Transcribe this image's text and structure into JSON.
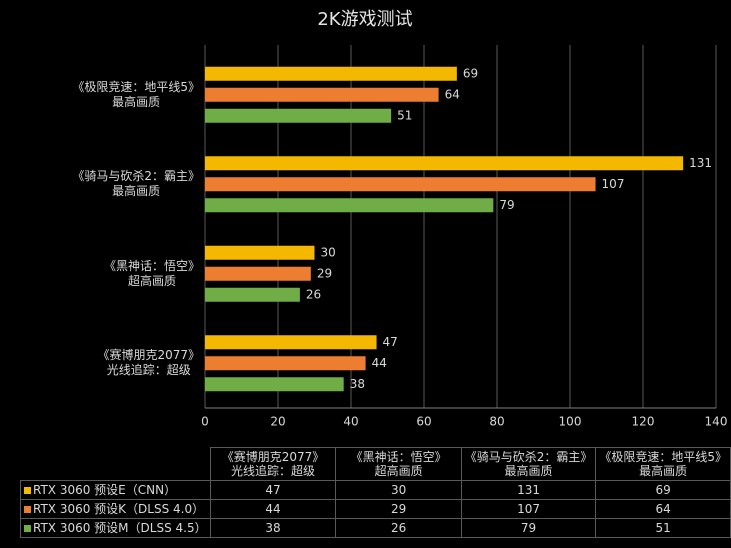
{
  "chart_data": {
    "type": "bar",
    "orientation": "horizontal",
    "title": "2K游戏测试",
    "categories": [
      "《赛博朋克2077》\n光线追踪：超级",
      "《黑神话：悟空》\n超高画质",
      "《骑马与砍杀2：霸主》\n最高画质",
      "《极限竞速：地平线5》\n最高画质"
    ],
    "series": [
      {
        "name": "RTX 3060 预设E（CNN）",
        "color": "#f5b800",
        "values": [
          47,
          30,
          131,
          69
        ]
      },
      {
        "name": "RTX 3060 预设K（DLSS 4.0）",
        "color": "#ed7d31",
        "values": [
          44,
          29,
          107,
          64
        ]
      },
      {
        "name": "RTX 3060 预设M（DLSS 4.5）",
        "color": "#70ad47",
        "values": [
          38,
          26,
          79,
          51
        ]
      }
    ],
    "xlim": [
      0,
      140
    ],
    "xticks": [
      0,
      20,
      40,
      60,
      80,
      100,
      120,
      140
    ],
    "grid": true,
    "data_table": true
  }
}
